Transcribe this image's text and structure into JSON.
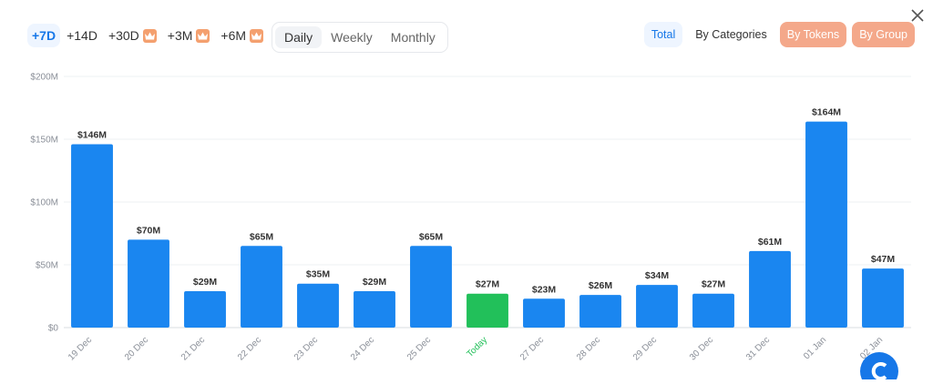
{
  "ranges": [
    {
      "label": "+7D",
      "active": true,
      "premium": false
    },
    {
      "label": "+14D",
      "active": false,
      "premium": false
    },
    {
      "label": "+30D",
      "active": false,
      "premium": true
    },
    {
      "label": "+3M",
      "active": false,
      "premium": true
    },
    {
      "label": "+6M",
      "active": false,
      "premium": true
    }
  ],
  "periods": [
    {
      "label": "Daily",
      "active": true
    },
    {
      "label": "Weekly",
      "active": false
    },
    {
      "label": "Monthly",
      "active": false
    }
  ],
  "views": [
    {
      "label": "Total",
      "active": true,
      "premium": false
    },
    {
      "label": "By Categories",
      "active": false,
      "premium": false
    },
    {
      "label": "By Tokens",
      "active": false,
      "premium": true
    },
    {
      "label": "By Group",
      "active": false,
      "premium": true
    }
  ],
  "icons": {
    "close": "close-icon",
    "premium": "crown-icon",
    "logo": "logo-icon"
  },
  "colors": {
    "bar": "#1a86f0",
    "today": "#22c05a",
    "today_label": "#22c05a",
    "premium": "#f4a88a",
    "accent": "#1677e8"
  },
  "chart_data": {
    "type": "bar",
    "categories": [
      "19 Dec",
      "20 Dec",
      "21 Dec",
      "22 Dec",
      "23 Dec",
      "24 Dec",
      "25 Dec",
      "Today",
      "27 Dec",
      "28 Dec",
      "29 Dec",
      "30 Dec",
      "31 Dec",
      "01 Jan",
      "02 Jan"
    ],
    "values": [
      146,
      70,
      29,
      65,
      35,
      29,
      65,
      27,
      23,
      26,
      34,
      27,
      61,
      164,
      47
    ],
    "value_labels": [
      "$146M",
      "$70M",
      "$29M",
      "$65M",
      "$35M",
      "$29M",
      "$65M",
      "$27M",
      "$23M",
      "$26M",
      "$34M",
      "$27M",
      "$61M",
      "$164M",
      "$47M"
    ],
    "highlight_index": 7,
    "y_ticks": [
      0,
      50,
      100,
      150,
      200
    ],
    "y_tick_labels": [
      "$0",
      "$50M",
      "$100M",
      "$150M",
      "$200M"
    ],
    "ylim": [
      0,
      200
    ],
    "unit": "$M",
    "grid": true,
    "legend": "none"
  }
}
